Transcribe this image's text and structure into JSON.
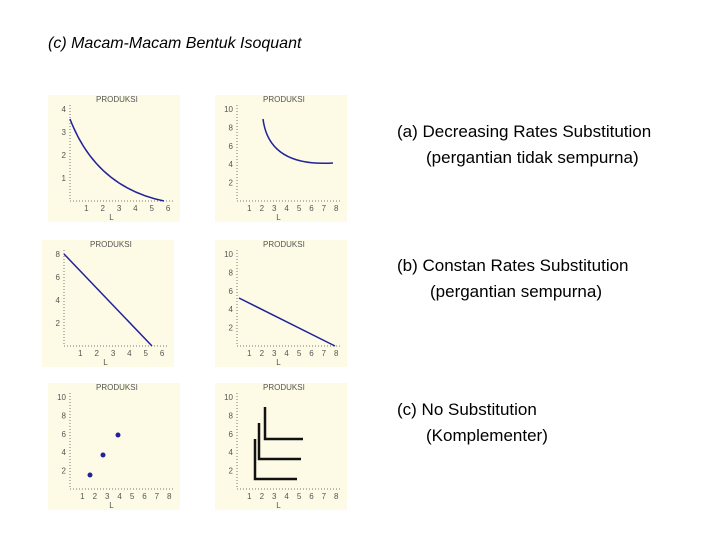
{
  "title": "(c) Macam-Macam Bentuk Isoquant",
  "panels": [
    {
      "label": "PRODUKSI",
      "yticks": [
        "4",
        "3",
        "2",
        "1"
      ],
      "xticks": [
        "1",
        "2",
        "3",
        "4",
        "5",
        "6"
      ],
      "xlabel": "L"
    },
    {
      "label": "PRODUKSI",
      "yticks": [
        "10",
        "8",
        "6",
        "4",
        "2"
      ],
      "xticks": [
        "1",
        "2",
        "3",
        "4",
        "5",
        "6",
        "7",
        "8"
      ],
      "xlabel": "L"
    },
    {
      "label": "PRODUKSI",
      "yticks": [
        "8",
        "6",
        "4",
        "2"
      ],
      "xticks": [
        "1",
        "2",
        "3",
        "4",
        "5",
        "6"
      ],
      "xlabel": "L"
    },
    {
      "label": "PRODUKSI",
      "yticks": [
        "10",
        "8",
        "6",
        "4",
        "2"
      ],
      "xticks": [
        "1",
        "2",
        "3",
        "4",
        "5",
        "6",
        "7",
        "8"
      ],
      "xlabel": "L"
    },
    {
      "label": "PRODUKSI",
      "yticks": [
        "10",
        "8",
        "6",
        "4",
        "2"
      ],
      "xticks": [
        "1",
        "2",
        "3",
        "4",
        "5",
        "6",
        "7",
        "8"
      ],
      "xlabel": "L"
    },
    {
      "label": "PRODUKSI",
      "yticks": [
        "10",
        "8",
        "6",
        "4",
        "2"
      ],
      "xticks": [
        "1",
        "2",
        "3",
        "4",
        "5",
        "6",
        "7",
        "8"
      ],
      "xlabel": "L"
    }
  ],
  "descriptions": [
    {
      "heading": "(a) Decreasing Rates Substitution",
      "note": "(pergantian tidak sempurna)"
    },
    {
      "heading": "(b) Constan Rates Substitution",
      "note": "(pergantian  sempurna)"
    },
    {
      "heading": "(c) No Substitution",
      "note": "(Komplementer)"
    }
  ]
}
